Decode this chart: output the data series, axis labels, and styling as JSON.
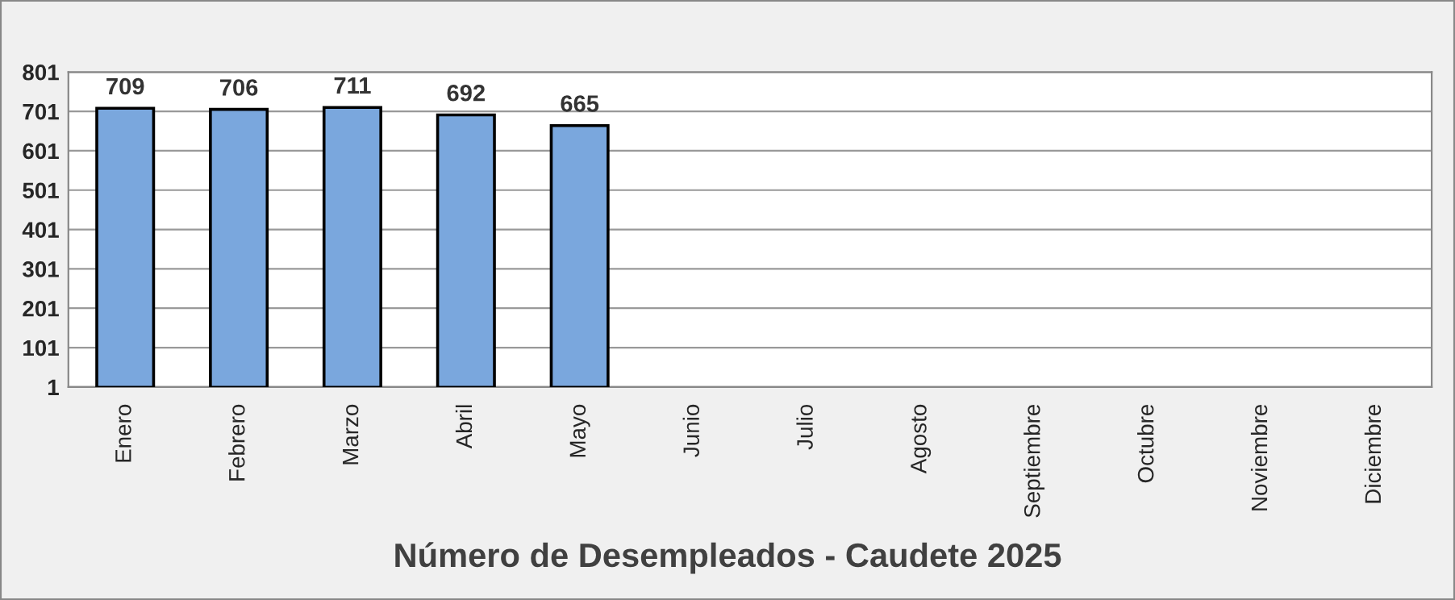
{
  "chart_data": {
    "type": "bar",
    "title": "Número de Desempleados - Caudete 2025",
    "categories": [
      "Enero",
      "Febrero",
      "Marzo",
      "Abril",
      "Mayo",
      "Junio",
      "Julio",
      "Agosto",
      "Septiembre",
      "Octubre",
      "Noviembre",
      "Diciembre"
    ],
    "values": [
      709,
      706,
      711,
      692,
      665,
      null,
      null,
      null,
      null,
      null,
      null,
      null
    ],
    "color": "#7aa7dd",
    "ylim": [
      1,
      801
    ],
    "yticks": [
      1,
      101,
      201,
      301,
      401,
      501,
      601,
      701,
      801
    ],
    "grid": "y",
    "data_labels": true
  }
}
